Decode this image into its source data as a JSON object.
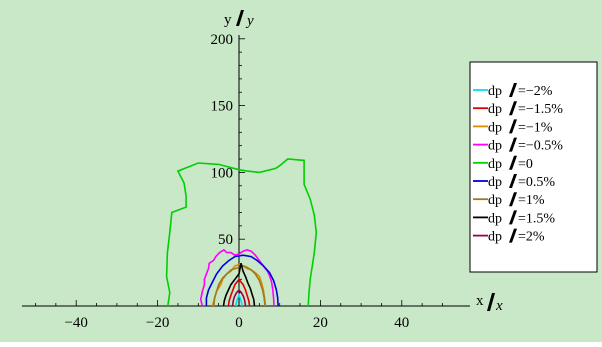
{
  "page": {
    "background_color": "#c8e8c8"
  },
  "chart_data": {
    "type": "line",
    "title": "",
    "xlabel": "x /σx",
    "ylabel": "y /σy",
    "xlabel_parts": {
      "main": "x",
      "sub": "x"
    },
    "ylabel_parts": {
      "main": "y",
      "sub": "y"
    },
    "xlim": [
      -52,
      52
    ],
    "ylim": [
      0,
      200
    ],
    "x_ticks": [
      -40,
      -20,
      0,
      20,
      40
    ],
    "y_ticks": [
      50,
      100,
      150,
      200
    ],
    "x_tick_labels": [
      "−40",
      "−20",
      "0",
      "20",
      "40"
    ],
    "y_tick_labels": [
      "50",
      "100",
      "150",
      "200"
    ],
    "grid": false,
    "legend_position": "right",
    "legend_prefix": "dp",
    "series": [
      {
        "name": "−2%",
        "color": "#00e0f0",
        "points": [
          [
            -0.8,
            0
          ],
          [
            -0.6,
            3
          ],
          [
            -0.3,
            6
          ],
          [
            0,
            8
          ],
          [
            0.3,
            6
          ],
          [
            0.6,
            3
          ],
          [
            0.8,
            0
          ]
        ]
      },
      {
        "name": "−1.5%",
        "color": "#e00000",
        "points": [
          [
            -2.6,
            0
          ],
          [
            -2.4,
            4
          ],
          [
            -2,
            8
          ],
          [
            -1.5,
            12
          ],
          [
            -1,
            16
          ],
          [
            -0.5,
            18
          ],
          [
            0,
            20
          ],
          [
            0.5,
            18
          ],
          [
            1,
            16
          ],
          [
            1.6,
            12
          ],
          [
            2,
            8
          ],
          [
            2.4,
            4
          ],
          [
            2.6,
            0
          ]
        ]
      },
      {
        "name": "−1%",
        "color": "#e08a00",
        "points": [
          [
            -6.5,
            0
          ],
          [
            -6,
            6
          ],
          [
            -5.5,
            11
          ],
          [
            -4.5,
            16
          ],
          [
            -4,
            20
          ],
          [
            -3,
            24
          ],
          [
            -2,
            26
          ],
          [
            -1,
            30
          ],
          [
            0,
            31
          ],
          [
            1,
            30
          ],
          [
            2,
            28
          ],
          [
            3,
            27
          ],
          [
            4,
            25
          ],
          [
            5,
            22
          ],
          [
            5.6,
            17
          ],
          [
            6,
            12
          ],
          [
            6.3,
            6
          ],
          [
            6.5,
            0
          ]
        ]
      },
      {
        "name": "−0.5%",
        "color": "#ff00ff",
        "points": [
          [
            -9,
            0
          ],
          [
            -9.4,
            5
          ],
          [
            -9,
            11
          ],
          [
            -8.5,
            16
          ],
          [
            -8.5,
            20
          ],
          [
            -8,
            24
          ],
          [
            -7.5,
            28
          ],
          [
            -7.3,
            32
          ],
          [
            -6.3,
            34
          ],
          [
            -5.7,
            37
          ],
          [
            -4.8,
            40
          ],
          [
            -3.7,
            42
          ],
          [
            -3,
            40
          ],
          [
            -2,
            40
          ],
          [
            -1,
            38
          ],
          [
            0,
            39
          ],
          [
            1,
            41
          ],
          [
            2,
            42
          ],
          [
            3,
            41
          ],
          [
            4,
            38
          ],
          [
            5,
            34
          ],
          [
            6,
            30
          ],
          [
            7,
            26
          ],
          [
            7.6,
            22
          ],
          [
            8,
            18
          ],
          [
            8.3,
            12
          ],
          [
            8.5,
            6
          ],
          [
            8.6,
            0
          ]
        ]
      },
      {
        "name": "0",
        "color": "#00d000",
        "points": [
          [
            -17.5,
            0
          ],
          [
            -17,
            10
          ],
          [
            -17.8,
            22
          ],
          [
            -17.6,
            40
          ],
          [
            -17,
            55
          ],
          [
            -16.5,
            70
          ],
          [
            -13,
            74
          ],
          [
            -13,
            82
          ],
          [
            -13.5,
            92
          ],
          [
            -14.5,
            98
          ],
          [
            -15,
            101
          ],
          [
            -10,
            107
          ],
          [
            -5,
            106
          ],
          [
            0,
            102
          ],
          [
            2,
            101
          ],
          [
            5,
            100
          ],
          [
            9,
            103
          ],
          [
            10,
            105
          ],
          [
            12,
            110
          ],
          [
            16,
            109
          ],
          [
            16,
            91
          ],
          [
            17.5,
            80
          ],
          [
            18.5,
            68
          ],
          [
            19,
            55
          ],
          [
            18.5,
            40
          ],
          [
            18,
            30
          ],
          [
            17.5,
            20
          ],
          [
            17.2,
            10
          ],
          [
            17,
            0
          ]
        ]
      },
      {
        "name": "0.5%",
        "color": "#0000e0",
        "points": [
          [
            -8,
            0
          ],
          [
            -8,
            6
          ],
          [
            -7.5,
            12
          ],
          [
            -6.5,
            18
          ],
          [
            -5.5,
            24
          ],
          [
            -4,
            30
          ],
          [
            -2.5,
            34
          ],
          [
            -1,
            37
          ],
          [
            1,
            38
          ],
          [
            3,
            37
          ],
          [
            4.5,
            34
          ],
          [
            6,
            30
          ],
          [
            7.5,
            25
          ],
          [
            8.5,
            19
          ],
          [
            9.2,
            12
          ],
          [
            9.5,
            6
          ],
          [
            9.6,
            0
          ]
        ]
      },
      {
        "name": "1%",
        "color": "#a07820",
        "points": [
          [
            -6.2,
            0
          ],
          [
            -6,
            6
          ],
          [
            -5.5,
            11
          ],
          [
            -5,
            16
          ],
          [
            -4,
            21
          ],
          [
            -3,
            24
          ],
          [
            -2,
            27
          ],
          [
            -1,
            28
          ],
          [
            0,
            29
          ],
          [
            1,
            30
          ],
          [
            2,
            29
          ],
          [
            3,
            27
          ],
          [
            4,
            24
          ],
          [
            5,
            19
          ],
          [
            5.8,
            12
          ],
          [
            6.2,
            6
          ],
          [
            6.4,
            0
          ]
        ]
      },
      {
        "name": "1.5%",
        "color": "#000000",
        "points": [
          [
            -3.8,
            0
          ],
          [
            -3.6,
            4
          ],
          [
            -3.2,
            8
          ],
          [
            -2.6,
            12
          ],
          [
            -2,
            16
          ],
          [
            -1,
            20
          ],
          [
            0,
            24
          ],
          [
            0.5,
            32
          ],
          [
            1,
            26
          ],
          [
            1.6,
            22
          ],
          [
            2.2,
            17
          ],
          [
            2.8,
            13
          ],
          [
            3.2,
            9
          ],
          [
            3.6,
            5
          ],
          [
            3.8,
            0
          ]
        ]
      },
      {
        "name": "2%",
        "color": "#9b0050",
        "points": [
          [
            -1.6,
            0
          ],
          [
            -1.4,
            4
          ],
          [
            -1.1,
            7
          ],
          [
            -0.6,
            10
          ],
          [
            0,
            12
          ],
          [
            0.6,
            10
          ],
          [
            1.1,
            7
          ],
          [
            1.4,
            4
          ],
          [
            1.6,
            0
          ]
        ]
      }
    ]
  }
}
